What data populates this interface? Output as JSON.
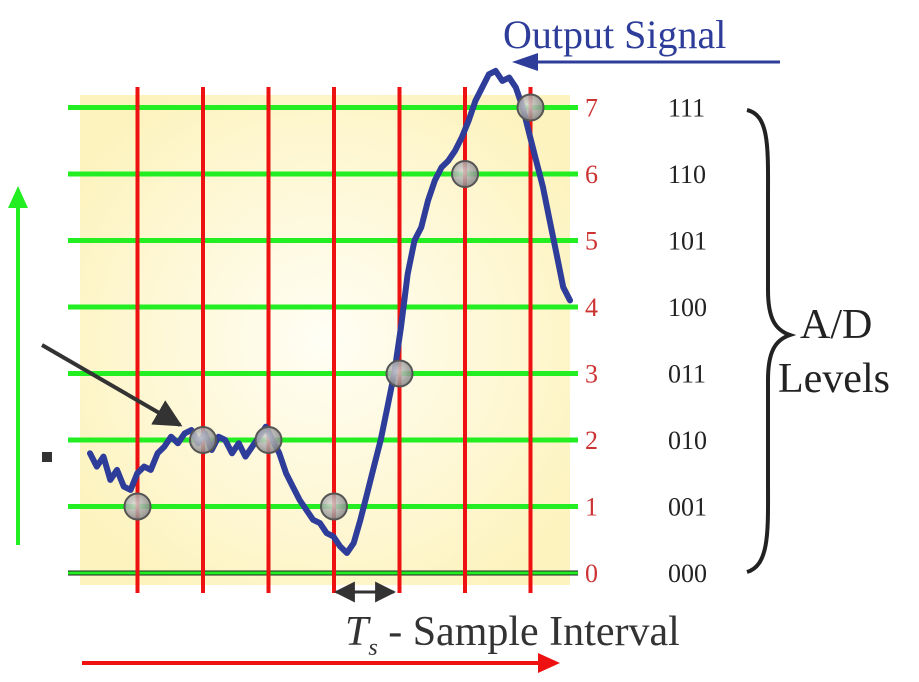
{
  "title": "Output Signal",
  "level_numbers": [
    "0",
    "1",
    "2",
    "3",
    "4",
    "5",
    "6",
    "7"
  ],
  "level_codes": [
    "000",
    "001",
    "010",
    "011",
    "100",
    "101",
    "110",
    "111"
  ],
  "ad_label_line1": "A/D",
  "ad_label_line2": "Levels",
  "ts_symbol": "T",
  "ts_subscript": "s",
  "ts_suffix": " - Sample Interval",
  "colors": {
    "horizontal_lines": "#22ee22",
    "vertical_lines": "#ee1111",
    "signal": "#2e3d99",
    "level_number_text": "#cc3333",
    "background_fill": "#fff8cc",
    "sample_marker": "#999999"
  },
  "signal_levels": [
    1.8,
    1.6,
    1.75,
    1.4,
    1.55,
    1.3,
    1.25,
    1.5,
    1.6,
    1.55,
    1.8,
    1.9,
    2.05,
    1.95,
    2.1,
    2.15,
    1.95,
    2.1,
    1.85,
    2.05,
    2.0,
    1.8,
    1.95,
    1.75,
    1.9,
    2.05,
    2.2,
    2.0,
    1.8,
    1.5,
    1.3,
    1.1,
    0.95,
    0.8,
    0.75,
    0.6,
    0.55,
    0.4,
    0.3,
    0.45,
    0.8,
    1.2,
    1.6,
    2.0,
    2.5,
    3.0,
    3.7,
    4.5,
    5.0,
    5.2,
    5.6,
    5.9,
    6.1,
    6.2,
    6.35,
    6.55,
    6.8,
    7.1,
    7.3,
    7.5,
    7.55,
    7.4,
    7.45,
    7.3,
    7.0,
    6.6,
    6.2,
    5.8,
    5.3,
    4.8,
    4.3,
    4.1
  ],
  "samples": [
    {
      "index": 1,
      "level": 1
    },
    {
      "index": 2,
      "level": 2
    },
    {
      "index": 3,
      "level": 2
    },
    {
      "index": 4,
      "level": 1
    },
    {
      "index": 5,
      "level": 3
    },
    {
      "index": 6,
      "level": 6
    },
    {
      "index": 7,
      "level": 7
    }
  ]
}
